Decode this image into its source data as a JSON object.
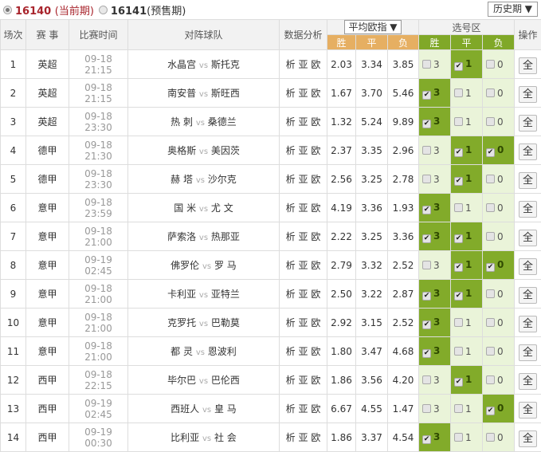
{
  "issues": {
    "current": {
      "number": "16140",
      "label": "(当前期)"
    },
    "presale": {
      "number": "16141",
      "label": "(预售期)"
    },
    "history": "历史期"
  },
  "header": {
    "no": "场次",
    "league": "赛 事",
    "time": "比赛时间",
    "teams": "对阵球队",
    "analysis": "数据分析",
    "odds_select": "平均欧指",
    "odds": [
      "胜",
      "平",
      "负"
    ],
    "pick_zone": "选号区",
    "picks": [
      "胜",
      "平",
      "负"
    ],
    "action": "操作"
  },
  "colors": {
    "odds_header": "#e6af62",
    "pick_header": "#80a828",
    "pick_selected": "#82ab2a",
    "pick_unselected": "#eaf4d9",
    "current_issue": "#a8242c"
  },
  "analysis_links": [
    "析",
    "亚",
    "欧"
  ],
  "vs": "vs",
  "all_label": "全",
  "pick_values": [
    "3",
    "1",
    "0"
  ],
  "rows": [
    {
      "no": "1",
      "league": "英超",
      "time": "09-18 21:15",
      "home": "水晶宫",
      "away": "斯托克",
      "odds": [
        "2.03",
        "3.34",
        "3.85"
      ],
      "sel": [
        false,
        true,
        false
      ]
    },
    {
      "no": "2",
      "league": "英超",
      "time": "09-18 21:15",
      "home": "南安普",
      "away": "斯旺西",
      "odds": [
        "1.67",
        "3.70",
        "5.46"
      ],
      "sel": [
        true,
        false,
        false
      ]
    },
    {
      "no": "3",
      "league": "英超",
      "time": "09-18 23:30",
      "home": "热 刺",
      "away": "桑德兰",
      "odds": [
        "1.32",
        "5.24",
        "9.89"
      ],
      "sel": [
        true,
        false,
        false
      ]
    },
    {
      "no": "4",
      "league": "德甲",
      "time": "09-18 21:30",
      "home": "奥格斯",
      "away": "美因茨",
      "odds": [
        "2.37",
        "3.35",
        "2.96"
      ],
      "sel": [
        false,
        true,
        true
      ]
    },
    {
      "no": "5",
      "league": "德甲",
      "time": "09-18 23:30",
      "home": "赫 塔",
      "away": "沙尔克",
      "odds": [
        "2.56",
        "3.25",
        "2.78"
      ],
      "sel": [
        false,
        true,
        false
      ]
    },
    {
      "no": "6",
      "league": "意甲",
      "time": "09-18 23:59",
      "home": "国 米",
      "away": "尤 文",
      "odds": [
        "4.19",
        "3.36",
        "1.93"
      ],
      "sel": [
        true,
        false,
        false
      ]
    },
    {
      "no": "7",
      "league": "意甲",
      "time": "09-18 21:00",
      "home": "萨索洛",
      "away": "热那亚",
      "odds": [
        "2.22",
        "3.25",
        "3.36"
      ],
      "sel": [
        true,
        true,
        false
      ]
    },
    {
      "no": "8",
      "league": "意甲",
      "time": "09-19 02:45",
      "home": "佛罗伦",
      "away": "罗 马",
      "odds": [
        "2.79",
        "3.32",
        "2.52"
      ],
      "sel": [
        false,
        true,
        true
      ]
    },
    {
      "no": "9",
      "league": "意甲",
      "time": "09-18 21:00",
      "home": "卡利亚",
      "away": "亚特兰",
      "odds": [
        "2.50",
        "3.22",
        "2.87"
      ],
      "sel": [
        true,
        true,
        false
      ]
    },
    {
      "no": "10",
      "league": "意甲",
      "time": "09-18 21:00",
      "home": "克罗托",
      "away": "巴勒莫",
      "odds": [
        "2.92",
        "3.15",
        "2.52"
      ],
      "sel": [
        true,
        false,
        false
      ]
    },
    {
      "no": "11",
      "league": "意甲",
      "time": "09-18 21:00",
      "home": "都 灵",
      "away": "恩波利",
      "odds": [
        "1.80",
        "3.47",
        "4.68"
      ],
      "sel": [
        true,
        false,
        false
      ]
    },
    {
      "no": "12",
      "league": "西甲",
      "time": "09-18 22:15",
      "home": "毕尔巴",
      "away": "巴伦西",
      "odds": [
        "1.86",
        "3.56",
        "4.20"
      ],
      "sel": [
        false,
        true,
        false
      ]
    },
    {
      "no": "13",
      "league": "西甲",
      "time": "09-19 02:45",
      "home": "西班人",
      "away": "皇 马",
      "odds": [
        "6.67",
        "4.55",
        "1.47"
      ],
      "sel": [
        false,
        false,
        true
      ]
    },
    {
      "no": "14",
      "league": "西甲",
      "time": "09-19 00:30",
      "home": "比利亚",
      "away": "社 会",
      "odds": [
        "1.86",
        "3.37",
        "4.54"
      ],
      "sel": [
        true,
        false,
        false
      ]
    }
  ]
}
